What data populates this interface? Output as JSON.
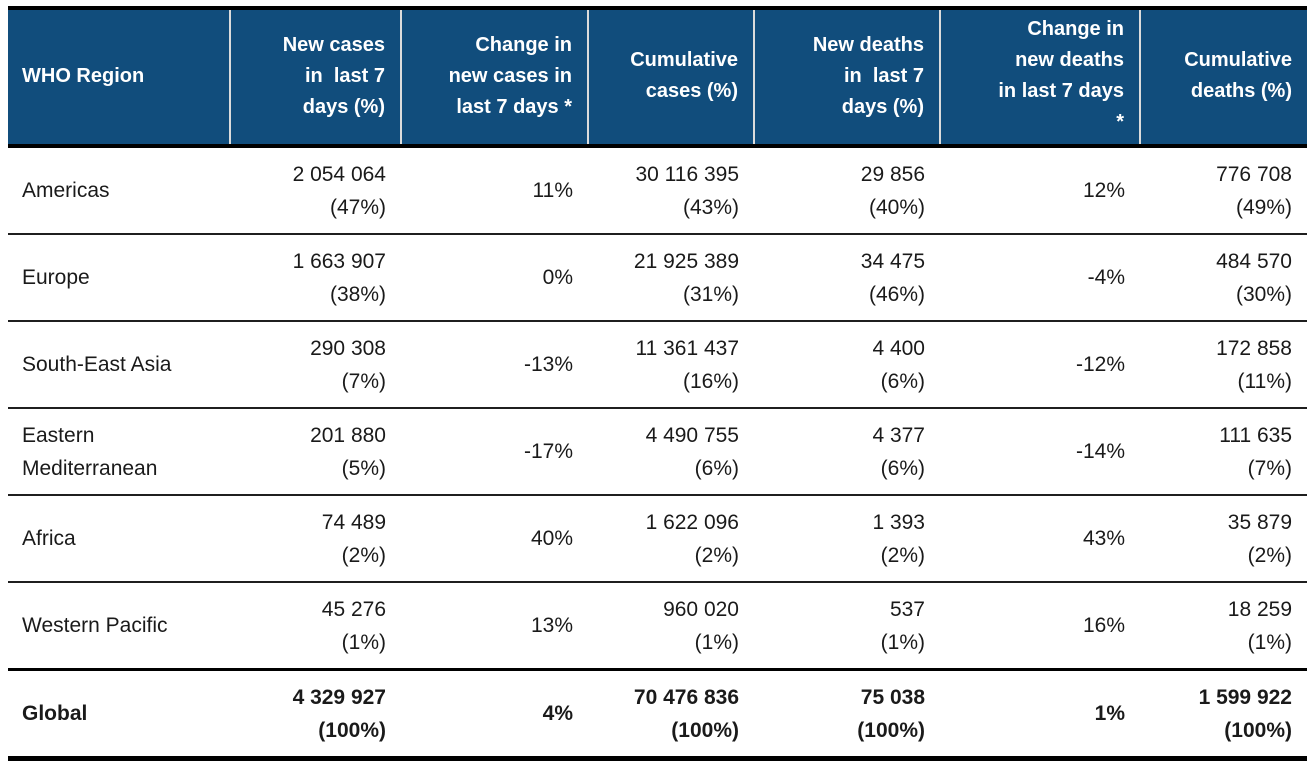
{
  "colors": {
    "header_background": "#114D7C",
    "header_text": "#FFFFFF",
    "body_text": "#1A1A1A",
    "rule_color": "#000000"
  },
  "table": {
    "headers": [
      "WHO Region",
      "New cases\nin  last 7\ndays (%)",
      "Change in\nnew cases in\nlast 7 days *",
      "Cumulative\ncases (%)",
      "New deaths\nin  last 7\ndays (%)",
      "Change in\nnew deaths\nin last 7 days\n*",
      "Cumulative\ndeaths (%)"
    ],
    "rows": [
      {
        "region": "Americas",
        "new_cases": "2 054 064\n(47%)",
        "change_new_cases": "11%",
        "cumulative_cases": "30 116 395\n(43%)",
        "new_deaths": "29 856\n(40%)",
        "change_new_deaths": "12%",
        "cumulative_deaths": "776 708\n(49%)"
      },
      {
        "region": "Europe",
        "new_cases": "1 663 907\n(38%)",
        "change_new_cases": "0%",
        "cumulative_cases": "21 925 389\n(31%)",
        "new_deaths": "34 475\n(46%)",
        "change_new_deaths": "-4%",
        "cumulative_deaths": "484 570\n(30%)"
      },
      {
        "region": "South-East Asia",
        "new_cases": "290 308\n(7%)",
        "change_new_cases": "-13%",
        "cumulative_cases": "11 361 437\n(16%)",
        "new_deaths": "4 400\n(6%)",
        "change_new_deaths": "-12%",
        "cumulative_deaths": "172 858\n(11%)"
      },
      {
        "region": "Eastern\nMediterranean",
        "new_cases": "201 880\n(5%)",
        "change_new_cases": "-17%",
        "cumulative_cases": "4 490 755\n(6%)",
        "new_deaths": "4 377\n(6%)",
        "change_new_deaths": "-14%",
        "cumulative_deaths": "111 635\n(7%)"
      },
      {
        "region": "Africa",
        "new_cases": "74 489\n(2%)",
        "change_new_cases": "40%",
        "cumulative_cases": "1 622 096\n(2%)",
        "new_deaths": "1 393\n(2%)",
        "change_new_deaths": "43%",
        "cumulative_deaths": "35 879\n(2%)"
      },
      {
        "region": "Western Pacific",
        "new_cases": "45 276\n(1%)",
        "change_new_cases": "13%",
        "cumulative_cases": "960 020\n(1%)",
        "new_deaths": "537\n(1%)",
        "change_new_deaths": "16%",
        "cumulative_deaths": "18 259\n(1%)"
      },
      {
        "region": "Global",
        "new_cases": "4 329 927\n(100%)",
        "change_new_cases": "4%",
        "cumulative_cases": "70 476 836\n(100%)",
        "new_deaths": "75 038\n(100%)",
        "change_new_deaths": "1%",
        "cumulative_deaths": "1 599 922\n(100%)"
      }
    ]
  }
}
